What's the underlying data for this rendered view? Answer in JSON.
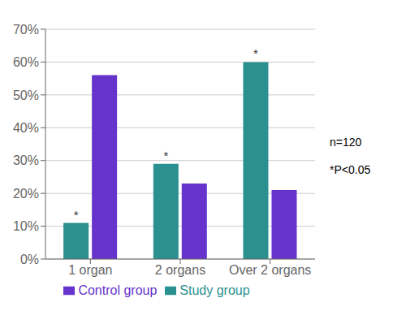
{
  "chart_data": {
    "type": "bar",
    "categories": [
      "1 organ",
      "2 organs",
      "Over 2 organs"
    ],
    "series": [
      {
        "name": "Study group",
        "color": "#2a9090",
        "values": [
          11,
          29,
          60
        ]
      },
      {
        "name": "Control group",
        "color": "#6633cc",
        "values": [
          56,
          23,
          21
        ]
      }
    ],
    "ylim": [
      0,
      70
    ],
    "yticks": [
      {
        "value": 0,
        "label": "0%"
      },
      {
        "value": 10,
        "label": "10%"
      },
      {
        "value": 20,
        "label": "20%"
      },
      {
        "value": 30,
        "label": "30%"
      },
      {
        "value": 40,
        "label": "40%"
      },
      {
        "value": 50,
        "label": "50%"
      },
      {
        "value": 60,
        "label": "60%"
      },
      {
        "value": 70,
        "label": "70%"
      }
    ],
    "grid": true,
    "legend": "bottom",
    "annotations": [
      {
        "text": "*",
        "series": "Study group",
        "category": "1 organ"
      },
      {
        "text": "*",
        "series": "Study group",
        "category": "2 organs"
      },
      {
        "text": "*",
        "series": "Study group",
        "category": "Over 2 organs"
      },
      {
        "text": "n=120"
      },
      {
        "text": "*P<0.05"
      }
    ]
  }
}
